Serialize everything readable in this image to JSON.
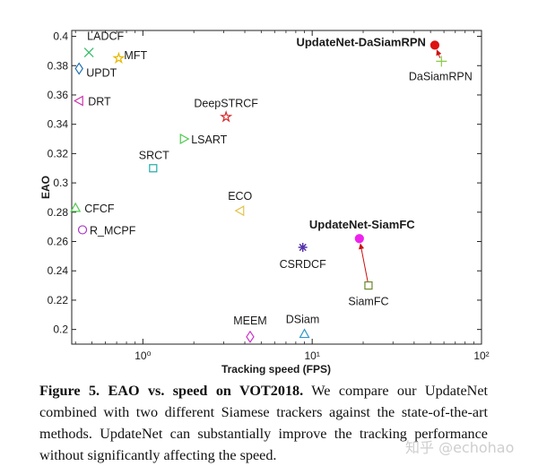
{
  "chart_data": {
    "type": "scatter",
    "xlabel": "Tracking speed (FPS)",
    "ylabel": "EAO",
    "x_scale": "log",
    "xlim": [
      0.38,
      100
    ],
    "ylim": [
      0.19,
      0.404
    ],
    "x_ticks": [
      1,
      10,
      100
    ],
    "x_tick_labels": [
      "10⁰",
      "10¹",
      "10²"
    ],
    "y_ticks": [
      0.2,
      0.22,
      0.24,
      0.26,
      0.28,
      0.3,
      0.32,
      0.34,
      0.36,
      0.38,
      0.4
    ],
    "y_tick_labels": [
      "0.2",
      "0.22",
      "0.24",
      "0.26",
      "0.28",
      "0.3",
      "0.32",
      "0.34",
      "0.36",
      "0.38",
      "0.4"
    ],
    "grid": false,
    "legend": "none",
    "points": [
      {
        "label": "LADCF",
        "x": 0.48,
        "y": 0.389,
        "marker": "x",
        "color": "#33bb66"
      },
      {
        "label": "MFT",
        "x": 0.72,
        "y": 0.385,
        "marker": "star",
        "color": "#e6b800"
      },
      {
        "label": "UPDT",
        "x": 0.42,
        "y": 0.378,
        "marker": "diamond",
        "color": "#1f6fb5"
      },
      {
        "label": "DRT",
        "x": 0.42,
        "y": 0.356,
        "marker": "triangle-left",
        "color": "#cc33aa"
      },
      {
        "label": "DeepSTRCF",
        "x": 3.1,
        "y": 0.345,
        "marker": "star",
        "color": "#d62728"
      },
      {
        "label": "LSART",
        "x": 1.75,
        "y": 0.33,
        "marker": "triangle-right",
        "color": "#4dc94d"
      },
      {
        "label": "SRCT",
        "x": 1.15,
        "y": 0.31,
        "marker": "square",
        "color": "#22aaaa"
      },
      {
        "label": "ECO",
        "x": 3.75,
        "y": 0.281,
        "marker": "triangle-left",
        "color": "#e6c34d"
      },
      {
        "label": "CFCF",
        "x": 0.4,
        "y": 0.283,
        "marker": "triangle-up",
        "color": "#55cc55"
      },
      {
        "label": "R_MCPF",
        "x": 0.44,
        "y": 0.268,
        "marker": "circle",
        "color": "#aa33cc"
      },
      {
        "label": "CSRDCF",
        "x": 8.8,
        "y": 0.256,
        "marker": "asterisk",
        "color": "#5533aa"
      },
      {
        "label": "UpdateNet-SiamFC",
        "x": 19,
        "y": 0.262,
        "marker": "filled-circle",
        "color": "#ee22ee"
      },
      {
        "label": "SiamFC",
        "x": 21.5,
        "y": 0.23,
        "marker": "square",
        "color": "#6a8a2a"
      },
      {
        "label": "UpdateNet-DaSiamRPN",
        "x": 53,
        "y": 0.394,
        "marker": "filled-circle",
        "color": "#dd1111"
      },
      {
        "label": "DaSiamRPN",
        "x": 58,
        "y": 0.383,
        "marker": "plus",
        "color": "#88cc44"
      },
      {
        "label": "MEEM",
        "x": 4.3,
        "y": 0.195,
        "marker": "diamond",
        "color": "#cc33cc"
      },
      {
        "label": "DSiam",
        "x": 9,
        "y": 0.197,
        "marker": "triangle-up",
        "color": "#3399cc"
      }
    ],
    "arrows": [
      {
        "from": "SiamFC",
        "to": "UpdateNet-SiamFC",
        "color": "#cc1111"
      },
      {
        "from": "DaSiamRPN",
        "to": "UpdateNet-DaSiamRPN",
        "color": "#cc1111"
      }
    ]
  },
  "caption": {
    "label": "Figure 5.",
    "title": "EAO vs. speed on VOT2018.",
    "text": "We compare our UpdateNet combined with two different Siamese trackers against the state-of-the-art methods. UpdateNet can substantially improve the tracking performance without significantly affecting the speed."
  },
  "watermark": "知乎 @echohao"
}
